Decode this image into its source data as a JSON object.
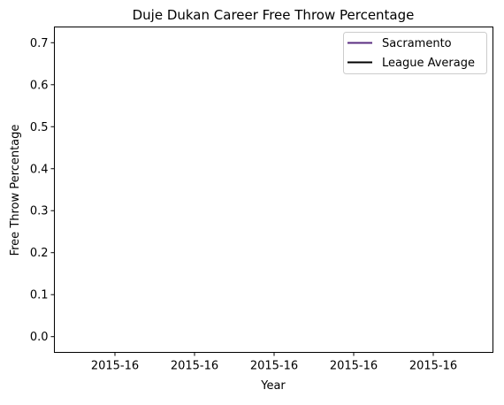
{
  "chart_data": {
    "type": "line",
    "title": "Duje Dukan Career Free Throw Percentage",
    "xlabel": "Year",
    "ylabel": "Free Throw Percentage",
    "x_tick_labels": [
      "2015-16",
      "2015-16",
      "2015-16",
      "2015-16",
      "2015-16"
    ],
    "y_ticks": [
      0.0,
      0.1,
      0.2,
      0.3,
      0.4,
      0.5,
      0.6,
      0.7
    ],
    "y_tick_labels": [
      "0.0",
      "0.1",
      "0.2",
      "0.3",
      "0.4",
      "0.5",
      "0.6",
      "0.7"
    ],
    "ylim": [
      -0.0375,
      0.7375
    ],
    "grid": false,
    "legend_position": "top-right",
    "series": [
      {
        "name": "Sacramento",
        "color": "#5a2d81",
        "values": []
      },
      {
        "name": "League Average",
        "color": "#000000",
        "values": []
      }
    ]
  }
}
